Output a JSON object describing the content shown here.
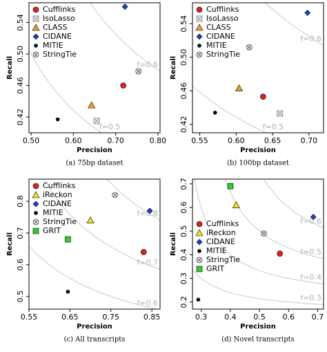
{
  "chart_data": [
    {
      "type": "scatter",
      "caption": "(a) 75bp dataset",
      "xlabel": "Precision",
      "ylabel": "Recall",
      "legend": "upper left",
      "xlim": [
        0.495,
        0.805
      ],
      "xticks": [
        {
          "value": 0.5,
          "label": "0.50"
        },
        {
          "value": 0.6,
          "label": "0.60"
        },
        {
          "value": 0.7,
          "label": "0.70"
        },
        {
          "value": 0.8,
          "label": "0.80"
        }
      ],
      "ylim": [
        0.4,
        0.565
      ],
      "yticks": [
        0.42,
        0.46,
        {
          "value": 0.5,
          "label": "0.50"
        },
        0.54
      ],
      "f_curves": [
        {
          "value": 0.6,
          "label": "f=0.6"
        },
        {
          "value": 0.5,
          "label": "f=0.5"
        }
      ],
      "series": [
        {
          "name": "Cufflinks",
          "color": "#e02020",
          "marker": "circle",
          "x": [
            0.718
          ],
          "y": [
            0.46
          ]
        },
        {
          "name": "IsoLasso",
          "color": "#999999",
          "marker": "square-x",
          "x": [
            0.655
          ],
          "y": [
            0.415
          ]
        },
        {
          "name": "CLASS",
          "color": "#f0a020",
          "marker": "triangle",
          "x": [
            0.643
          ],
          "y": [
            0.435
          ]
        },
        {
          "name": "CIDANE",
          "color": "#1f3fd0",
          "marker": "diamond",
          "x": [
            0.722
          ],
          "y": [
            0.56
          ]
        },
        {
          "name": "MITIE",
          "color": "#000000",
          "marker": "dot",
          "x": [
            0.563
          ],
          "y": [
            0.417
          ]
        },
        {
          "name": "StringTie",
          "color": "#999999",
          "marker": "circle-x",
          "x": [
            0.754
          ],
          "y": [
            0.478
          ]
        }
      ]
    },
    {
      "type": "scatter",
      "caption": "(b) 100bp dataset",
      "xlabel": "Precision",
      "ylabel": "Recall",
      "legend": "upper left",
      "xlim": [
        0.54,
        0.72
      ],
      "xticks": [
        0.55,
        {
          "value": 0.6,
          "label": "0.60"
        },
        0.65,
        {
          "value": 0.7,
          "label": "0.70"
        }
      ],
      "ylim": [
        0.41,
        0.565
      ],
      "yticks": [
        0.42,
        0.46,
        {
          "value": 0.5,
          "label": "0.50"
        },
        0.54
      ],
      "f_curves": [
        {
          "value": 0.6,
          "label": "f=0.6"
        },
        {
          "value": 0.5,
          "label": "f=0.5"
        }
      ],
      "series": [
        {
          "name": "Cufflinks",
          "color": "#e02020",
          "marker": "circle",
          "x": [
            0.637
          ],
          "y": [
            0.453
          ]
        },
        {
          "name": "IsoLasso",
          "color": "#999999",
          "marker": "square-x",
          "x": [
            0.66
          ],
          "y": [
            0.433
          ]
        },
        {
          "name": "CLASS",
          "color": "#f0a020",
          "marker": "triangle",
          "x": [
            0.604
          ],
          "y": [
            0.463
          ]
        },
        {
          "name": "CIDANE",
          "color": "#1f3fd0",
          "marker": "diamond",
          "x": [
            0.698
          ],
          "y": [
            0.553
          ]
        },
        {
          "name": "MITIE",
          "color": "#000000",
          "marker": "dot",
          "x": [
            0.571
          ],
          "y": [
            0.434
          ]
        },
        {
          "name": "StringTie",
          "color": "#999999",
          "marker": "circle-x",
          "x": [
            0.618
          ],
          "y": [
            0.512
          ]
        }
      ]
    },
    {
      "type": "scatter",
      "caption": "(c) All transcripts",
      "xlabel": "Precision",
      "ylabel": "Recall",
      "legend": "upper left",
      "xlim": [
        0.55,
        0.87
      ],
      "xticks": [
        0.55,
        0.65,
        0.75,
        0.85
      ],
      "ylim": [
        0.46,
        0.87
      ],
      "yticks": [
        0.5,
        0.6,
        0.7,
        0.8
      ],
      "f_curves": [
        {
          "value": 0.8,
          "label": "f=0.8"
        },
        {
          "value": 0.7,
          "label": "f=0.7"
        },
        {
          "value": 0.6,
          "label": "f=0.6"
        }
      ],
      "series": [
        {
          "name": "Cufflinks",
          "color": "#e02020",
          "marker": "circle",
          "x": [
            0.83
          ],
          "y": [
            0.64
          ]
        },
        {
          "name": "iReckon",
          "color": "#f0e020",
          "marker": "triangle",
          "x": [
            0.7
          ],
          "y": [
            0.74
          ]
        },
        {
          "name": "CIDANE",
          "color": "#1f3fd0",
          "marker": "diamond",
          "x": [
            0.845
          ],
          "y": [
            0.77
          ]
        },
        {
          "name": "MITIE",
          "color": "#000000",
          "marker": "dot",
          "x": [
            0.645
          ],
          "y": [
            0.515
          ]
        },
        {
          "name": "StringTie",
          "color": "#999999",
          "marker": "circle-x",
          "x": [
            0.76
          ],
          "y": [
            0.82
          ]
        },
        {
          "name": "GRIT",
          "color": "#30d030",
          "marker": "square",
          "x": [
            0.645
          ],
          "y": [
            0.68
          ]
        }
      ]
    },
    {
      "type": "scatter",
      "caption": "(d) Novel transcripts",
      "xlabel": "Precision",
      "ylabel": "Recall",
      "legend": "center left",
      "xlim": [
        0.27,
        0.72
      ],
      "xticks": [
        0.3,
        0.4,
        0.5,
        0.6,
        0.7
      ],
      "ylim": [
        0.17,
        0.72
      ],
      "yticks": [
        0.2,
        0.3,
        0.4,
        0.5,
        0.6,
        0.7
      ],
      "f_curves": [
        {
          "value": 0.6,
          "label": "f=0.6"
        },
        {
          "value": 0.5,
          "label": "f=0.5"
        },
        {
          "value": 0.4,
          "label": "f=0.4"
        },
        {
          "value": 0.3,
          "label": "f=0.3"
        }
      ],
      "series": [
        {
          "name": "Cufflinks",
          "color": "#e02020",
          "marker": "circle",
          "x": [
            0.57
          ],
          "y": [
            0.405
          ]
        },
        {
          "name": "iReckon",
          "color": "#f0e020",
          "marker": "triangle",
          "x": [
            0.42
          ],
          "y": [
            0.61
          ]
        },
        {
          "name": "CIDANE",
          "color": "#1f3fd0",
          "marker": "diamond",
          "x": [
            0.685
          ],
          "y": [
            0.56
          ]
        },
        {
          "name": "MITIE",
          "color": "#000000",
          "marker": "dot",
          "x": [
            0.29
          ],
          "y": [
            0.21
          ]
        },
        {
          "name": "StringTie",
          "color": "#999999",
          "marker": "circle-x",
          "x": [
            0.515
          ],
          "y": [
            0.49
          ]
        },
        {
          "name": "GRIT",
          "color": "#30d030",
          "marker": "square",
          "x": [
            0.4
          ],
          "y": [
            0.69
          ]
        }
      ]
    }
  ]
}
